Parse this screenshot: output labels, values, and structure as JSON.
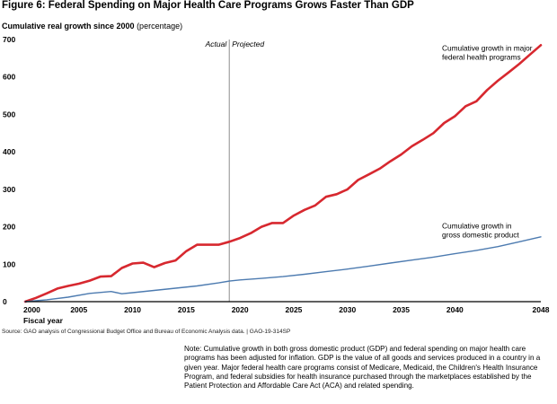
{
  "figure": {
    "title": "Figure 6: Federal Spending on Major Health Care Programs Grows Faster Than GDP",
    "y_title_bold": "Cumulative real growth since 2000",
    "y_title_rest": " (percentage)",
    "source": "Source: GAO analysis of Congressional Budget Office and Bureau of Economic Analysis data. | GAO-19-314SP",
    "note": "Note: Cumulative growth in both gross domestic product (GDP) and federal spending on major health care programs has been adjusted for inflation. GDP is the value of all goods and services produced in a country in a given year. Major federal health care programs consist of Medicare, Medicaid, the Children's Health Insurance Program, and federal subsidies for health insurance purchased through the marketplaces established by the Patient Protection and Affordable Care Act (ACA) and related spending."
  },
  "chart_data": {
    "type": "line",
    "xlabel": "Fiscal year",
    "ylabel": "",
    "xlim": [
      2000,
      2048
    ],
    "ylim": [
      0,
      700
    ],
    "x_ticks": [
      2000,
      2005,
      2010,
      2015,
      2020,
      2025,
      2030,
      2035,
      2040,
      2048
    ],
    "y_ticks": [
      0,
      100,
      200,
      300,
      400,
      500,
      600,
      700
    ],
    "grid": false,
    "divider": {
      "x": 2019,
      "left_label": "Actual",
      "right_label": "Projected"
    },
    "series": [
      {
        "name": "Cumulative growth in major federal health programs",
        "label_lines": [
          "Cumulative growth in major",
          "federal health programs"
        ],
        "color": "#d7282f",
        "x": [
          2000,
          2001,
          2002,
          2003,
          2004,
          2005,
          2006,
          2007,
          2008,
          2009,
          2010,
          2011,
          2012,
          2013,
          2014,
          2015,
          2016,
          2017,
          2018,
          2019,
          2020,
          2021,
          2022,
          2023,
          2024,
          2025,
          2026,
          2027,
          2028,
          2029,
          2030,
          2031,
          2032,
          2033,
          2034,
          2035,
          2036,
          2037,
          2038,
          2039,
          2040,
          2041,
          2042,
          2043,
          2044,
          2045,
          2046,
          2047,
          2048
        ],
        "values": [
          0,
          10,
          22,
          35,
          42,
          48,
          56,
          67,
          68,
          90,
          102,
          104,
          92,
          103,
          110,
          135,
          152,
          152,
          152,
          160,
          170,
          183,
          200,
          210,
          210,
          230,
          245,
          257,
          280,
          287,
          300,
          325,
          340,
          355,
          375,
          393,
          415,
          432,
          450,
          477,
          495,
          522,
          535,
          565,
          590,
          612,
          635,
          660,
          685
        ]
      },
      {
        "name": "Cumulative growth in gross domestic product",
        "label_lines": [
          "Cumulative growth in",
          "gross domestic product"
        ],
        "color": "#4d7bb0",
        "x": [
          2000,
          2002,
          2004,
          2006,
          2008,
          2009,
          2010,
          2012,
          2014,
          2016,
          2018,
          2019,
          2020,
          2022,
          2024,
          2026,
          2028,
          2030,
          2032,
          2034,
          2036,
          2038,
          2040,
          2042,
          2044,
          2046,
          2048
        ],
        "values": [
          0,
          5,
          12,
          22,
          27,
          21,
          24,
          30,
          36,
          42,
          50,
          55,
          58,
          62,
          67,
          73,
          80,
          87,
          95,
          103,
          111,
          119,
          128,
          137,
          147,
          160,
          173
        ]
      }
    ]
  }
}
